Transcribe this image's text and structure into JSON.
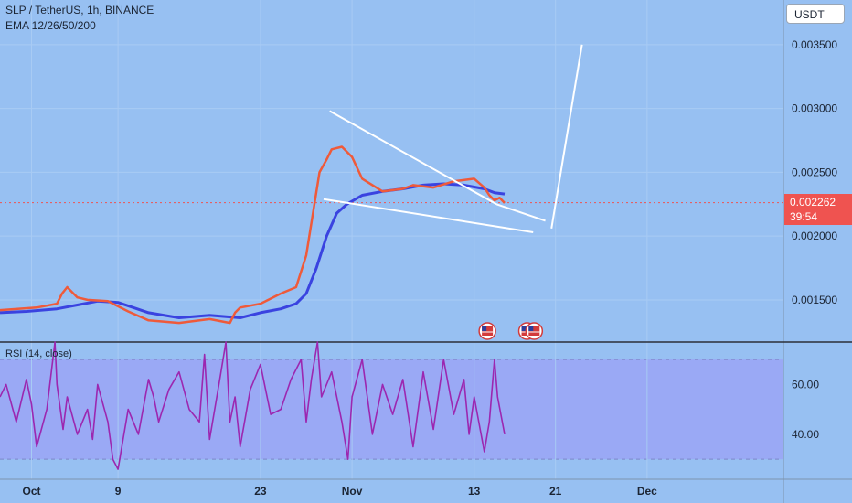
{
  "header": {
    "symbol": "SLP / TetherUS, 1h, BINANCE",
    "indicator": "EMA 12/26/50/200"
  },
  "currency_button": "USDT",
  "last_price": {
    "value": "0.002262",
    "countdown": "39:54"
  },
  "rsi_pane": {
    "label": "RSI (14, close)"
  },
  "colors": {
    "background": "#97c0f2",
    "rsi_band": "#9aa6f5",
    "price_tag": "#ef5350",
    "ema_fast": "#ef5a3a",
    "ema_slow": "#3a43e0",
    "rsi_line": "#9c27b0",
    "drawing": "#ffffff"
  },
  "event_icons": [
    "us-flag-icon",
    "us-flag-icon",
    "us-flag-icon"
  ],
  "chart_data": [
    {
      "type": "line",
      "pane": "price",
      "x_ticks": [
        "Oct",
        "9",
        "23",
        "Nov",
        "13",
        "21",
        "Dec"
      ],
      "x_tick_pos": [
        0.5,
        9,
        23,
        32,
        44,
        52,
        61
      ],
      "y_ticks": [
        "0.003500",
        "0.003000",
        "0.002500",
        "0.002000",
        "0.001500"
      ],
      "y_tick_values": [
        0.0035,
        0.003,
        0.0025,
        0.002,
        0.0015
      ],
      "ylim": [
        0.00117,
        0.00385
      ],
      "xlim": [
        -2.6,
        74.4
      ],
      "grid": true,
      "series": [
        {
          "role": "ema_slow",
          "x": [
            -2.6,
            0,
            3,
            5,
            7,
            9,
            12,
            15,
            18,
            21,
            23,
            25,
            26.5,
            27.5,
            28.5,
            29.5,
            30.5,
            31.5,
            33,
            35,
            37,
            39,
            41,
            43,
            45,
            46,
            47
          ],
          "y": [
            0.0014,
            0.00141,
            0.00143,
            0.00146,
            0.00149,
            0.00148,
            0.0014,
            0.00136,
            0.00138,
            0.00136,
            0.0014,
            0.00143,
            0.00147,
            0.00155,
            0.00175,
            0.002,
            0.00218,
            0.00225,
            0.00232,
            0.00235,
            0.00237,
            0.0024,
            0.00241,
            0.0024,
            0.00237,
            0.00234,
            0.00233
          ]
        },
        {
          "role": "ema_fast",
          "x": [
            -2.6,
            1,
            3,
            3.5,
            4,
            5,
            6,
            8,
            10,
            12,
            15,
            18,
            20,
            20.5,
            21,
            23,
            25,
            26.5,
            27.5,
            28.2,
            28.8,
            29.5,
            30,
            31,
            32,
            33,
            35,
            37,
            38,
            40,
            42,
            44,
            45,
            45.5,
            46,
            46.5,
            47
          ],
          "y": [
            0.00142,
            0.00144,
            0.00147,
            0.00155,
            0.0016,
            0.00152,
            0.0015,
            0.00149,
            0.00141,
            0.00134,
            0.00132,
            0.00135,
            0.00132,
            0.0014,
            0.00144,
            0.00147,
            0.00155,
            0.0016,
            0.00185,
            0.0022,
            0.0025,
            0.0026,
            0.00268,
            0.0027,
            0.00262,
            0.00245,
            0.00235,
            0.00237,
            0.0024,
            0.00238,
            0.00243,
            0.00245,
            0.00238,
            0.00232,
            0.00228,
            0.0023,
            0.00226
          ]
        }
      ],
      "drawings": [
        {
          "role": "wedge_upper",
          "x": [
            29.8,
            46.2
          ],
          "y": [
            0.00298,
            0.00225
          ]
        },
        {
          "role": "wedge_upper_ext",
          "x": [
            46.2,
            51.0
          ],
          "y": [
            0.00225,
            0.00212
          ]
        },
        {
          "role": "wedge_lower",
          "x": [
            29.2,
            49.8
          ],
          "y": [
            0.00229,
            0.00203
          ]
        },
        {
          "role": "breakout",
          "x": [
            51.6,
            54.6
          ],
          "y": [
            0.00206,
            0.0035
          ]
        }
      ],
      "events_x": [
        45.3,
        49.2,
        49.9
      ]
    },
    {
      "type": "line",
      "pane": "rsi",
      "name": "RSI (14, close)",
      "y_ticks": [
        "60.00",
        "40.00"
      ],
      "y_tick_values": [
        60,
        40
      ],
      "ylim": [
        22,
        77
      ],
      "band": [
        30,
        70
      ],
      "x": [
        -2.6,
        -2,
        -1,
        0,
        0.5,
        1,
        2,
        2.8,
        3,
        3.6,
        4,
        5,
        6,
        6.5,
        7,
        8,
        8.5,
        9,
        10,
        11,
        12,
        12.5,
        13,
        14,
        15,
        16,
        17,
        17.5,
        18,
        19,
        19.6,
        20,
        20.5,
        21,
        22,
        23,
        24,
        25,
        26,
        27,
        27.5,
        28,
        28.6,
        29,
        30,
        31,
        31.6,
        32,
        33,
        34,
        35,
        36,
        37,
        38,
        39,
        40,
        41,
        42,
        43,
        43.5,
        44,
        45,
        45.5,
        46,
        46.3,
        47
      ],
      "y": [
        55,
        60,
        45,
        62,
        52,
        35,
        50,
        77,
        60,
        42,
        55,
        40,
        50,
        38,
        60,
        45,
        30,
        26,
        50,
        40,
        62,
        55,
        45,
        58,
        65,
        50,
        45,
        72,
        38,
        62,
        77,
        45,
        55,
        35,
        58,
        68,
        48,
        50,
        62,
        70,
        45,
        62,
        77,
        55,
        65,
        45,
        30,
        55,
        70,
        40,
        60,
        48,
        62,
        35,
        65,
        42,
        70,
        48,
        62,
        40,
        55,
        33,
        45,
        70,
        55,
        40
      ]
    }
  ]
}
